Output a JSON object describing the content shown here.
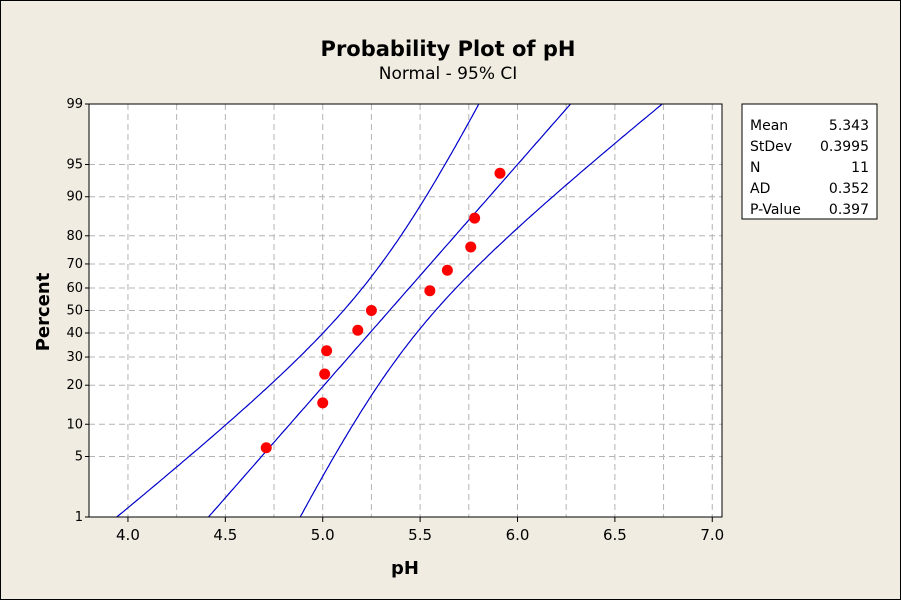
{
  "chart_data": {
    "type": "scatter",
    "title": "Probability Plot of pH",
    "subtitle": "Normal - 95% CI",
    "xlabel": "pH",
    "ylabel": "Percent",
    "xlim": [
      3.8,
      7.05
    ],
    "x_ticks": [
      "4.0",
      "4.5",
      "5.0",
      "5.5",
      "6.0",
      "6.5",
      "7.0"
    ],
    "y_ticks": [
      "1",
      "5",
      "10",
      "20",
      "30",
      "40",
      "50",
      "60",
      "70",
      "80",
      "90",
      "95",
      "99"
    ],
    "y_scale": "normal-probability",
    "grid": true,
    "points": [
      {
        "x": 4.71,
        "y": 6.1
      },
      {
        "x": 5.0,
        "y": 14.9
      },
      {
        "x": 5.01,
        "y": 23.7
      },
      {
        "x": 5.02,
        "y": 32.5
      },
      {
        "x": 5.18,
        "y": 41.2
      },
      {
        "x": 5.25,
        "y": 50.0
      },
      {
        "x": 5.55,
        "y": 58.8
      },
      {
        "x": 5.64,
        "y": 67.5
      },
      {
        "x": 5.76,
        "y": 76.3
      },
      {
        "x": 5.78,
        "y": 85.1
      },
      {
        "x": 5.91,
        "y": 93.9
      }
    ],
    "fit_line": {
      "mean": 5.343,
      "stdev": 0.3995
    },
    "ci_level": 0.95,
    "n": 11,
    "colors": {
      "points": "#ff0000",
      "lines": "#0000cc",
      "grid": "#b4b4b4"
    }
  },
  "stats": [
    {
      "label": "Mean",
      "value": "5.343"
    },
    {
      "label": "StDev",
      "value": "0.3995"
    },
    {
      "label": "N",
      "value": "11"
    },
    {
      "label": "AD",
      "value": "0.352"
    },
    {
      "label": "P-Value",
      "value": "0.397"
    }
  ]
}
